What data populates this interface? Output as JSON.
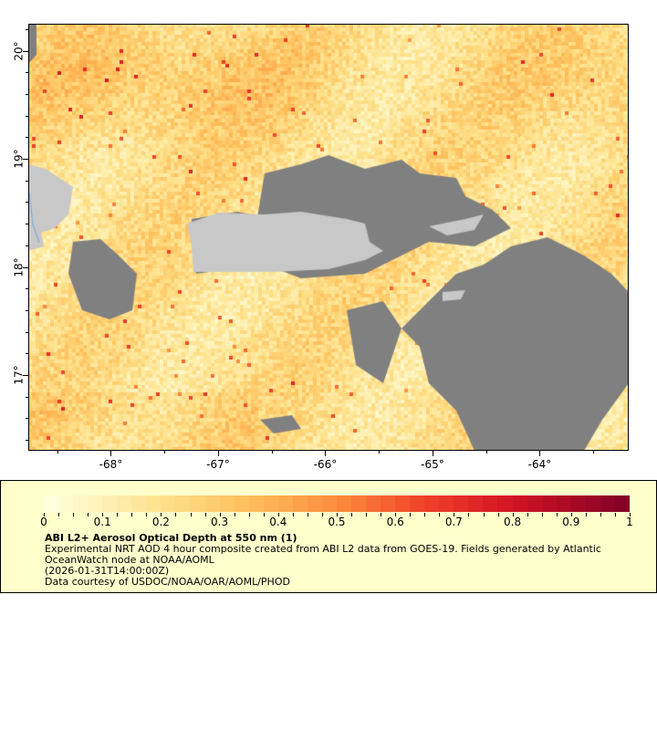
{
  "map": {
    "lon_range": [
      -68.77,
      -63.17
    ],
    "lat_range": [
      16.3,
      20.25
    ],
    "x_ticks": [
      "-68°",
      "-67°",
      "-66°",
      "-65°",
      "-64°"
    ],
    "x_tick_values": [
      -68,
      -67,
      -66,
      -65,
      -64
    ],
    "y_ticks": [
      "20°",
      "19°",
      "18°",
      "17°"
    ],
    "y_tick_values": [
      20,
      19,
      18,
      17
    ],
    "land_color": "#c8c8c8",
    "cloud_color": "#808080"
  },
  "legend": {
    "colorbar_range": [
      0,
      1
    ],
    "colorbar_ticks": [
      "0",
      "0.1",
      "0.2",
      "0.3",
      "0.4",
      "0.5",
      "0.6",
      "0.7",
      "0.8",
      "0.9",
      "1"
    ],
    "colormap_start": "#ffffe0",
    "colormap_end": "#800026",
    "title": "ABI L2+ Aerosol Optical Depth at 550 nm (1)",
    "line1": "Experimental NRT AOD 4 hour composite created from ABI L2 data from GOES-19. Fields generated by Atlantic",
    "line2": "OceanWatch node at NOAA/AOML",
    "line3": "(2026-01-31T14:00:00Z)",
    "line4": "Data courtesy of USDOC/NOAA/OAR/AOML/PHOD"
  }
}
